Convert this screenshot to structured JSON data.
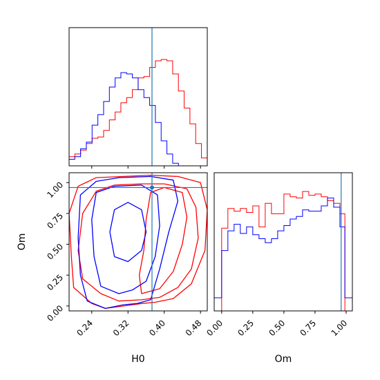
{
  "chart_data": {
    "type": "corner",
    "colors": {
      "red": "#ff0000",
      "blue": "#0000ff",
      "truth": "#1f77b4"
    },
    "truth": {
      "H0": 0.373,
      "Om": 0.96
    },
    "panels": [
      {
        "type": "histogram",
        "variable": "H0",
        "xlim": [
          0.19,
          0.495
        ],
        "xticks": [
          0.24,
          0.32,
          0.4,
          0.48
        ],
        "bin_edges": [
          0.19,
          0.2027,
          0.2154,
          0.2281,
          0.2408,
          0.2535,
          0.2662,
          0.2789,
          0.2916,
          0.3043,
          0.317,
          0.3297,
          0.3424,
          0.3551,
          0.3678,
          0.3805,
          0.3932,
          0.4059,
          0.4186,
          0.4313,
          0.444,
          0.4567,
          0.4694,
          0.4821,
          0.495
        ],
        "series": [
          {
            "color": "red",
            "density": [
              0.07,
              0.09,
              0.12,
              0.17,
              0.21,
              0.22,
              0.27,
              0.35,
              0.41,
              0.48,
              0.52,
              0.58,
              0.67,
              0.68,
              0.75,
              0.8,
              0.81,
              0.8,
              0.7,
              0.57,
              0.44,
              0.32,
              0.17,
              0.06
            ]
          },
          {
            "color": "blue",
            "density": [
              0.05,
              0.07,
              0.13,
              0.18,
              0.31,
              0.39,
              0.49,
              0.6,
              0.67,
              0.71,
              0.7,
              0.67,
              0.58,
              0.52,
              0.46,
              0.33,
              0.19,
              0.09,
              0.02,
              0.0,
              0.0,
              0.0,
              0.0,
              0.0
            ]
          }
        ]
      },
      {
        "type": "contour",
        "xvar": "H0",
        "yvar": "Om",
        "xlabel": "H0",
        "ylabel": "Om",
        "xlim": [
          0.19,
          0.495
        ],
        "ylim": [
          -0.04,
          1.08
        ],
        "xticks": [
          0.24,
          0.32,
          0.4,
          0.48
        ],
        "yticks": [
          0.0,
          0.25,
          0.5,
          0.75,
          1.0
        ],
        "contours": [
          {
            "color": "red",
            "points": [
              [
                0.24,
                0.02
              ],
              [
                0.27,
                -0.02
              ],
              [
                0.31,
                0.0
              ],
              [
                0.35,
                0.02
              ],
              [
                0.38,
                0.03
              ],
              [
                0.42,
                0.06
              ],
              [
                0.46,
                0.18
              ],
              [
                0.49,
                0.45
              ],
              [
                0.495,
                0.78
              ],
              [
                0.48,
                1.0
              ],
              [
                0.43,
                1.05
              ],
              [
                0.37,
                1.06
              ],
              [
                0.31,
                1.05
              ],
              [
                0.25,
                1.04
              ],
              [
                0.21,
                0.97
              ],
              [
                0.19,
                0.75
              ],
              [
                0.195,
                0.4
              ],
              [
                0.2,
                0.15
              ],
              [
                0.24,
                0.02
              ]
            ]
          },
          {
            "color": "red",
            "points": [
              [
                0.26,
                0.1
              ],
              [
                0.3,
                0.04
              ],
              [
                0.35,
                0.05
              ],
              [
                0.39,
                0.07
              ],
              [
                0.43,
                0.15
              ],
              [
                0.46,
                0.3
              ],
              [
                0.475,
                0.55
              ],
              [
                0.47,
                0.8
              ],
              [
                0.45,
                0.95
              ],
              [
                0.4,
                0.99
              ],
              [
                0.35,
                0.99
              ],
              [
                0.29,
                0.98
              ],
              [
                0.25,
                0.93
              ],
              [
                0.22,
                0.75
              ],
              [
                0.21,
                0.45
              ],
              [
                0.22,
                0.22
              ],
              [
                0.26,
                0.1
              ]
            ]
          },
          {
            "color": "red",
            "points": [
              [
                0.35,
                0.1
              ],
              [
                0.39,
                0.14
              ],
              [
                0.42,
                0.28
              ],
              [
                0.44,
                0.5
              ],
              [
                0.45,
                0.72
              ],
              [
                0.44,
                0.92
              ],
              [
                0.4,
                0.96
              ],
              [
                0.37,
                0.92
              ],
              [
                0.36,
                0.7
              ],
              [
                0.355,
                0.45
              ],
              [
                0.345,
                0.25
              ],
              [
                0.35,
                0.1
              ]
            ]
          },
          {
            "color": "blue",
            "points": [
              [
                0.23,
                0.04
              ],
              [
                0.27,
                -0.02
              ],
              [
                0.31,
                0.01
              ],
              [
                0.34,
                0.02
              ],
              [
                0.37,
                0.05
              ],
              [
                0.39,
                0.3
              ],
              [
                0.41,
                0.6
              ],
              [
                0.43,
                0.85
              ],
              [
                0.42,
                1.02
              ],
              [
                0.37,
                1.05
              ],
              [
                0.3,
                1.04
              ],
              [
                0.25,
                1.01
              ],
              [
                0.215,
                0.9
              ],
              [
                0.21,
                0.55
              ],
              [
                0.215,
                0.25
              ],
              [
                0.23,
                0.04
              ]
            ]
          },
          {
            "color": "blue",
            "points": [
              [
                0.26,
                0.16
              ],
              [
                0.3,
                0.1
              ],
              [
                0.33,
                0.13
              ],
              [
                0.36,
                0.2
              ],
              [
                0.38,
                0.4
              ],
              [
                0.39,
                0.65
              ],
              [
                0.385,
                0.9
              ],
              [
                0.35,
                0.98
              ],
              [
                0.29,
                0.97
              ],
              [
                0.25,
                0.92
              ],
              [
                0.24,
                0.7
              ],
              [
                0.245,
                0.4
              ],
              [
                0.26,
                0.16
              ]
            ]
          },
          {
            "color": "blue",
            "points": [
              [
                0.29,
                0.4
              ],
              [
                0.32,
                0.36
              ],
              [
                0.35,
                0.45
              ],
              [
                0.36,
                0.6
              ],
              [
                0.35,
                0.78
              ],
              [
                0.32,
                0.84
              ],
              [
                0.29,
                0.78
              ],
              [
                0.28,
                0.6
              ],
              [
                0.29,
                0.4
              ]
            ]
          }
        ]
      },
      {
        "type": "histogram",
        "variable": "Om",
        "xlabel": "Om",
        "xlim": [
          -0.06,
          1.05
        ],
        "xticks": [
          0.0,
          0.25,
          0.5,
          0.75,
          1.0
        ],
        "bin_edges": [
          -0.06,
          0.0,
          0.05,
          0.1,
          0.15,
          0.2,
          0.25,
          0.3,
          0.35,
          0.4,
          0.45,
          0.5,
          0.55,
          0.6,
          0.65,
          0.7,
          0.75,
          0.8,
          0.85,
          0.9,
          0.95,
          0.99,
          1.05
        ],
        "series": [
          {
            "color": "red",
            "density": [
              0.0,
              0.63,
              0.78,
              0.76,
              0.78,
              0.75,
              0.8,
              0.64,
              0.82,
              0.74,
              0.74,
              0.89,
              0.87,
              0.86,
              0.91,
              0.88,
              0.89,
              0.87,
              0.84,
              0.82,
              0.74,
              0.0
            ]
          },
          {
            "color": "blue",
            "density": [
              0.1,
              0.46,
              0.61,
              0.66,
              0.59,
              0.64,
              0.58,
              0.55,
              0.52,
              0.55,
              0.61,
              0.65,
              0.7,
              0.72,
              0.77,
              0.76,
              0.76,
              0.8,
              0.86,
              0.79,
              0.64,
              0.1
            ]
          }
        ]
      }
    ]
  }
}
